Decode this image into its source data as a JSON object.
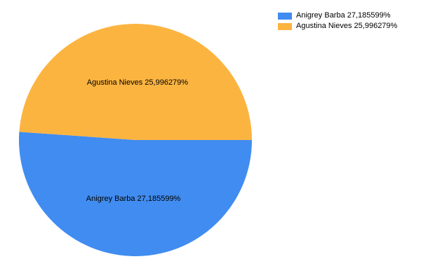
{
  "chart_data": {
    "type": "pie",
    "title": "",
    "legend_position": "top-right",
    "slices": [
      {
        "name": "Anigrey Barba",
        "value": 27.185599,
        "label": "Anigrey Barba  27,185599%",
        "color": "#418CF0"
      },
      {
        "name": "Agustina Nieves",
        "value": 25.996279,
        "label": "Agustina Nieves 25,996279%",
        "color": "#FCB441"
      }
    ]
  }
}
